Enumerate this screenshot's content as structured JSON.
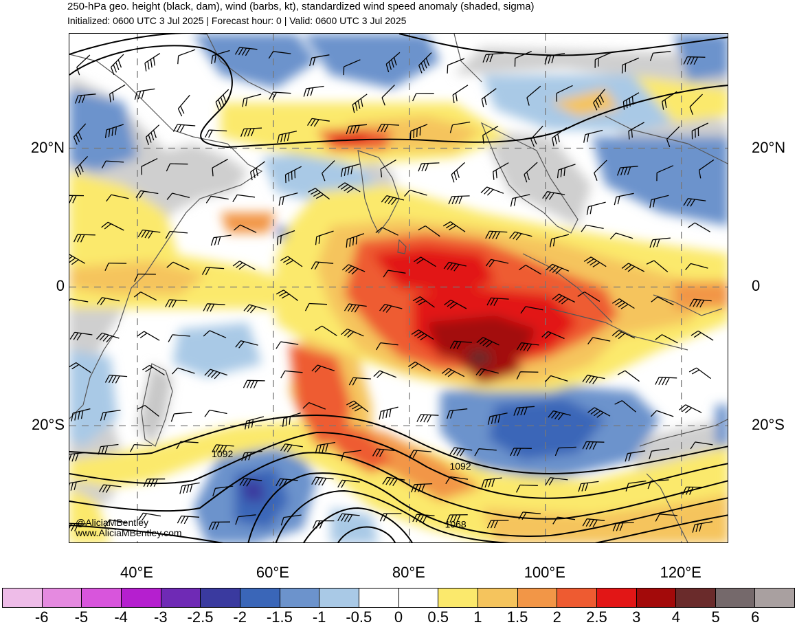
{
  "title": "250-hPa geo. height (black, dam), wind (barbs, kt), standardized wind speed anomaly (shaded, sigma)",
  "subtitle": "Initialized: 0600 UTC 3 Jul 2025 | Forecast hour: 0 | Valid: 0600 UTC 3 Jul 2025",
  "lat_labels": [
    {
      "label": "20°N",
      "lat": 20
    },
    {
      "label": "0",
      "lat": 0
    },
    {
      "label": "20°S",
      "lat": -20
    }
  ],
  "lon_labels": [
    {
      "label": "40°E",
      "lon": 40
    },
    {
      "label": "60°E",
      "lon": 60
    },
    {
      "label": "80°E",
      "lon": 80
    },
    {
      "label": "100°E",
      "lon": 100
    },
    {
      "label": "120°E",
      "lon": 120
    }
  ],
  "map_extent": {
    "lon_min": 30,
    "lon_max": 127,
    "lat_min": -37,
    "lat_max": 36.5
  },
  "contour_labels": [
    {
      "text": "1092",
      "lon": 52.5,
      "lat": -24
    },
    {
      "text": "1092",
      "lon": 87.5,
      "lat": -25.8
    },
    {
      "text": "1068",
      "lon": 86.8,
      "lat": -34.2
    }
  ],
  "colorbar": {
    "labels": [
      "-6",
      "-5",
      "-4",
      "-3",
      "-2.5",
      "-2",
      "-1.5",
      "-1",
      "-0.5",
      "0",
      "0.5",
      "1",
      "1.5",
      "2",
      "2.5",
      "3",
      "4",
      "5",
      "6"
    ],
    "colors": [
      "#eebce8",
      "#e58ae0",
      "#d855dc",
      "#b51fcf",
      "#6f2ab5",
      "#3a3a9f",
      "#3a66b8",
      "#6c93cc",
      "#a9c9e6",
      "#ffffff",
      "#ffffff",
      "#fbe96c",
      "#f5c45d",
      "#f29647",
      "#ee5b31",
      "#e21616",
      "#a30a0a",
      "#6a2b2b",
      "#75696b",
      "#a9a0a0"
    ]
  },
  "credits": {
    "handle": "@AliciaMBentley",
    "site": "www.AliciaMBentley.com"
  }
}
